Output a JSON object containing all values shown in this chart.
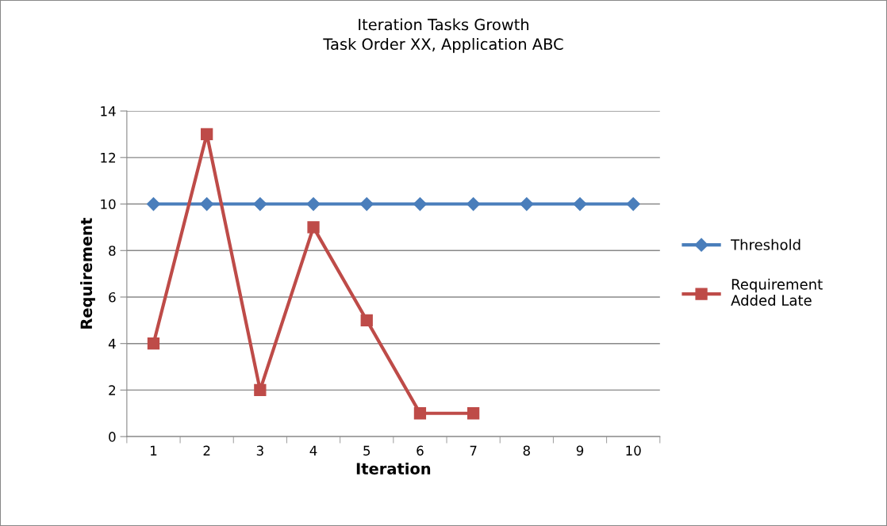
{
  "chart_data": {
    "type": "line",
    "title": "Iteration Tasks Growth\nTask Order XX, Application ABC",
    "xlabel": "Iteration",
    "ylabel": "Requirement",
    "categories": [
      "1",
      "2",
      "3",
      "4",
      "5",
      "6",
      "7",
      "8",
      "9",
      "10"
    ],
    "series": [
      {
        "name": "Threshold",
        "color": "#4a7ebb",
        "marker": "diamond",
        "values": [
          10,
          10,
          10,
          10,
          10,
          10,
          10,
          10,
          10,
          10
        ]
      },
      {
        "name": "Requirement\nAdded Late",
        "color": "#be4b48",
        "marker": "square",
        "values": [
          4,
          13,
          2,
          9,
          5,
          1,
          1,
          null,
          null,
          null
        ]
      }
    ],
    "ylim": [
      0,
      14
    ],
    "yticks": [
      0,
      2,
      4,
      6,
      8,
      10,
      12,
      14
    ],
    "grid": "y",
    "legend": "right",
    "line_style": "solid"
  }
}
